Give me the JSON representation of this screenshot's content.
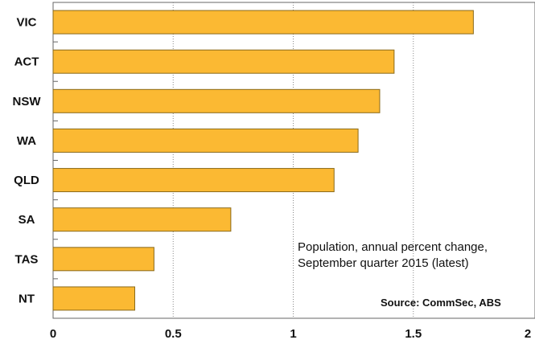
{
  "chart_data": {
    "type": "bar",
    "orientation": "horizontal",
    "title": "",
    "xlabel": "",
    "ylabel": "",
    "categories": [
      "VIC",
      "ACT",
      "NSW",
      "WA",
      "QLD",
      "SA",
      "TAS",
      "NT"
    ],
    "values": [
      1.75,
      1.42,
      1.36,
      1.27,
      1.17,
      0.74,
      0.42,
      0.34
    ],
    "xlim": [
      0,
      2
    ],
    "xticks": [
      "0",
      "0.5",
      "1",
      "1.5",
      "2"
    ],
    "grid": "vertical dotted",
    "bar_color": "#fbb933",
    "bar_edge_color": "#8a6a1a",
    "annotation_line1": "Population, annual percent change,",
    "annotation_line2": "September quarter 2015 (latest)",
    "source": "Source: CommSec, ABS"
  }
}
